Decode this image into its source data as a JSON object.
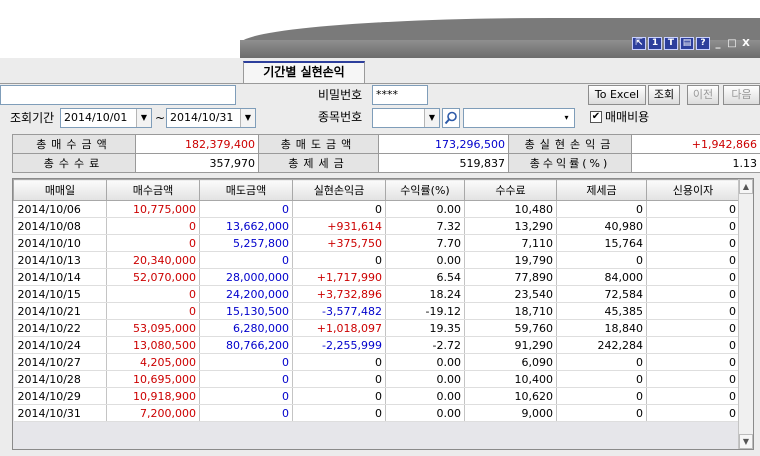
{
  "window": {
    "title_buttons": [
      "⇱",
      "1",
      "T",
      "▤",
      "?"
    ],
    "controls": [
      "_",
      "□",
      "X"
    ]
  },
  "tab": {
    "label": "기간별 실현손익"
  },
  "filters": {
    "period_label": "조회기간",
    "start_date": "2014/10/01",
    "tilde": "~",
    "end_date": "2014/10/31",
    "password_label": "비밀번호",
    "password_value": "****",
    "stock_code_label": "종목번호",
    "stock_code_value": "",
    "stock_name_value": "",
    "include_fees_label": "매매비용",
    "include_fees_checked": "✔"
  },
  "buttons": {
    "excel": "To Excel",
    "query": "조회",
    "prev": "이전",
    "next": "다음"
  },
  "summary": {
    "buy_total_label": "총매수금액",
    "buy_total_value": "182,379,400",
    "sell_total_label": "총매도금액",
    "sell_total_value": "173,296,500",
    "realized_pl_label": "총실현손익금",
    "realized_pl_value": "+1,942,866",
    "fee_total_label": "총수수료",
    "fee_total_value": "357,970",
    "tax_total_label": "총제세금",
    "tax_total_value": "519,837",
    "return_label": "총수익률(%)",
    "return_value": "1.13"
  },
  "grid": {
    "columns": [
      "매매일",
      "매수금액",
      "매도금액",
      "실현손익금",
      "수익률(%)",
      "수수료",
      "제세금",
      "신용이자"
    ],
    "rows": [
      [
        "2014/10/06",
        "10,775,000",
        "0",
        "0",
        "0.00",
        "10,480",
        "0",
        "0"
      ],
      [
        "2014/10/08",
        "0",
        "13,662,000",
        "+931,614",
        "7.32",
        "13,290",
        "40,980",
        "0"
      ],
      [
        "2014/10/10",
        "0",
        "5,257,800",
        "+375,750",
        "7.70",
        "7,110",
        "15,764",
        "0"
      ],
      [
        "2014/10/13",
        "20,340,000",
        "0",
        "0",
        "0.00",
        "19,790",
        "0",
        "0"
      ],
      [
        "2014/10/14",
        "52,070,000",
        "28,000,000",
        "+1,717,990",
        "6.54",
        "77,890",
        "84,000",
        "0"
      ],
      [
        "2014/10/15",
        "0",
        "24,200,000",
        "+3,732,896",
        "18.24",
        "23,540",
        "72,584",
        "0"
      ],
      [
        "2014/10/21",
        "0",
        "15,130,500",
        "-3,577,482",
        "-19.12",
        "18,710",
        "45,385",
        "0"
      ],
      [
        "2014/10/22",
        "53,095,000",
        "6,280,000",
        "+1,018,097",
        "19.35",
        "59,760",
        "18,840",
        "0"
      ],
      [
        "2014/10/24",
        "13,080,500",
        "80,766,200",
        "-2,255,999",
        "-2.72",
        "91,290",
        "242,284",
        "0"
      ],
      [
        "2014/10/27",
        "4,205,000",
        "0",
        "0",
        "0.00",
        "6,090",
        "0",
        "0"
      ],
      [
        "2014/10/28",
        "10,695,000",
        "0",
        "0",
        "0.00",
        "10,400",
        "0",
        "0"
      ],
      [
        "2014/10/29",
        "10,918,900",
        "0",
        "0",
        "0.00",
        "10,620",
        "0",
        "0"
      ],
      [
        "2014/10/31",
        "7,200,000",
        "0",
        "0",
        "0.00",
        "9,000",
        "0",
        "0"
      ]
    ]
  },
  "colors": {
    "buy": "#cc0000",
    "sell": "#0000cc",
    "profit": "#cc0000",
    "loss": "#0000cc",
    "accent": "#2d3f9c"
  },
  "icons": {
    "search": "search-icon",
    "dropdown": "chevron-down-icon",
    "scroll_up": "scroll-up-icon",
    "scroll_down": "scroll-down-icon"
  }
}
